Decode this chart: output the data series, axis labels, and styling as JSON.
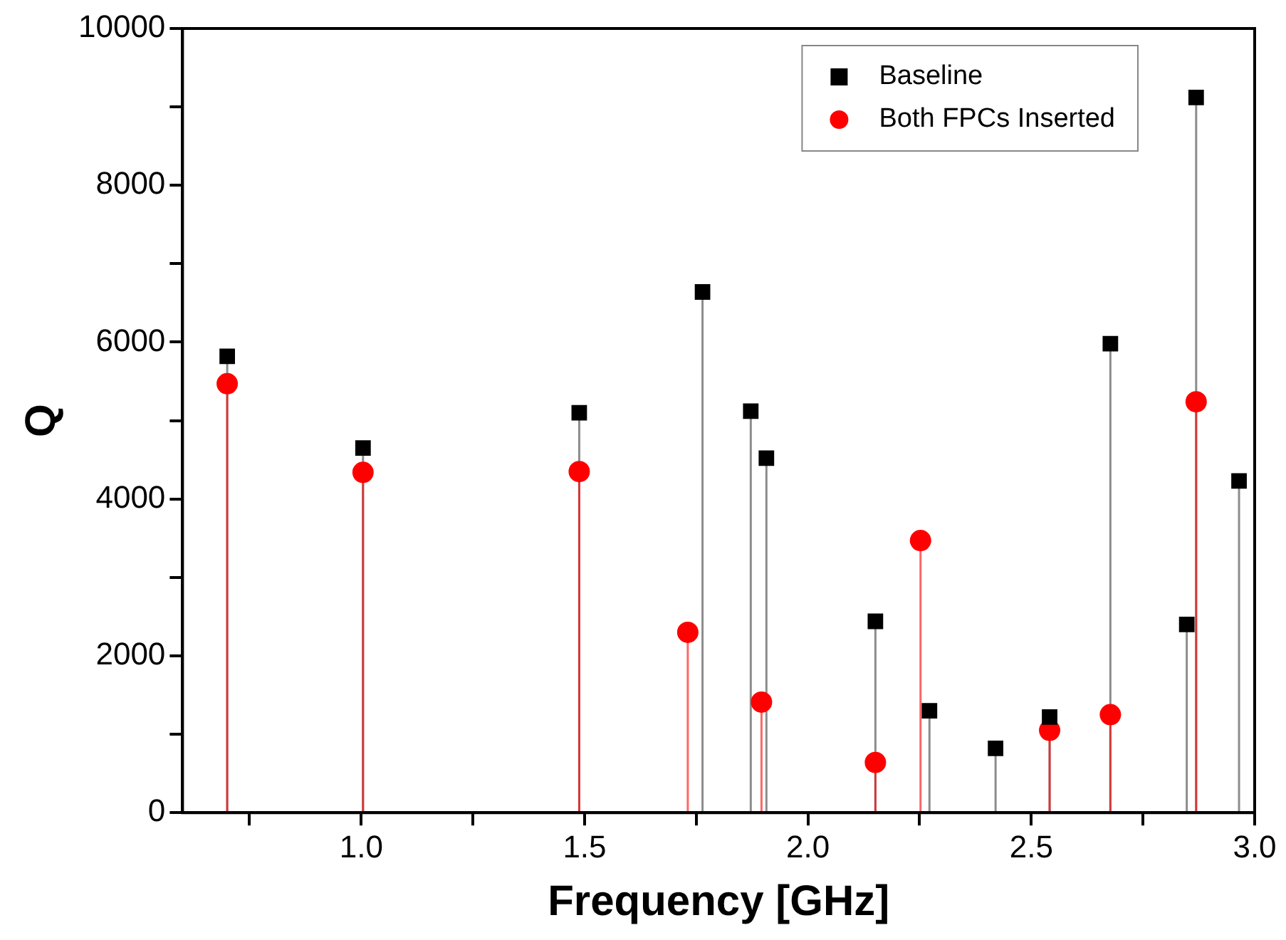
{
  "chart_data": {
    "type": "lollipop",
    "xlabel": "Frequency [GHz]",
    "ylabel": "Q",
    "xlim": [
      0.6,
      3.0
    ],
    "xticks": [
      {
        "value": 0.75,
        "label": null
      },
      {
        "value": 1.0,
        "label": "1.0"
      },
      {
        "value": 1.25,
        "label": null
      },
      {
        "value": 1.5,
        "label": "1.5"
      },
      {
        "value": 1.75,
        "label": null
      },
      {
        "value": 2.0,
        "label": "2.0"
      },
      {
        "value": 2.25,
        "label": null
      },
      {
        "value": 2.5,
        "label": "2.5"
      },
      {
        "value": 2.75,
        "label": null
      },
      {
        "value": 3.0,
        "label": "3.0"
      }
    ],
    "ylim": [
      0,
      10000
    ],
    "yticks": [
      0,
      {
        "value": 1000,
        "label": null
      },
      2000,
      {
        "value": 3000,
        "label": null
      },
      4000,
      {
        "value": 5000,
        "label": null
      },
      6000,
      {
        "value": 7000,
        "label": null
      },
      8000,
      {
        "value": 9000,
        "label": null
      },
      10000
    ],
    "grid": false,
    "legend": "top right",
    "series": [
      {
        "name": "Baseline",
        "color": "#000000",
        "marker": "square",
        "x": [
          0.7,
          1.004,
          1.488,
          1.764,
          1.872,
          1.907,
          2.151,
          2.272,
          2.42,
          2.541,
          2.677,
          2.848,
          2.869,
          2.965
        ],
        "values": [
          5820,
          4650,
          5100,
          6640,
          5120,
          4520,
          2440,
          1300,
          820,
          1220,
          5980,
          2400,
          9120,
          4230
        ]
      },
      {
        "name": "Both FPCs Inserted",
        "color": "#ff0000",
        "marker": "circle",
        "x": [
          0.7,
          1.004,
          1.488,
          1.731,
          1.896,
          2.151,
          2.252,
          2.541,
          2.677,
          2.869
        ],
        "values": [
          5470,
          4340,
          4350,
          2300,
          1410,
          640,
          3470,
          1050,
          1250,
          5240
        ]
      }
    ]
  }
}
